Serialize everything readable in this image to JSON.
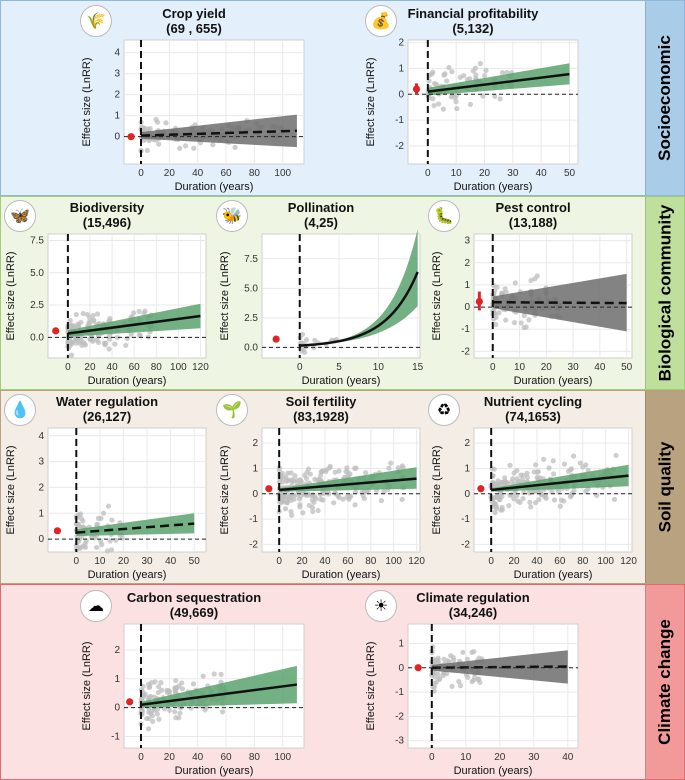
{
  "colors": {
    "socio_bg": "#e3effb",
    "socio_label": "#a9cde9",
    "bio_bg": "#eef6e3",
    "bio_label": "#bfe09c",
    "soil_bg": "#f3ede6",
    "soil_label": "#b9a27f",
    "climate_bg": "#fbe1e1",
    "climate_label": "#f29a9a",
    "green_ribbon": "#5ba26f",
    "grey_ribbon": "#6d6d6d",
    "point": "#bdbdbd",
    "effect": "#e02424"
  },
  "bands": [
    {
      "key": "socio",
      "label": "Socioeconomic"
    },
    {
      "key": "bio",
      "label": "Biological community"
    },
    {
      "key": "soil",
      "label": "Soil quality"
    },
    {
      "key": "climate",
      "label": "Climate change"
    }
  ],
  "icons": [
    {
      "name": "crop-yield-icon",
      "glyph": "🌾"
    },
    {
      "name": "financial-profitability-icon",
      "glyph": "💰"
    },
    {
      "name": "biodiversity-icon",
      "glyph": "🦋"
    },
    {
      "name": "pollination-icon",
      "glyph": "🐝"
    },
    {
      "name": "pest-control-icon",
      "glyph": "🐛"
    },
    {
      "name": "water-regulation-icon",
      "glyph": "💧"
    },
    {
      "name": "soil-fertility-icon",
      "glyph": "🌱"
    },
    {
      "name": "nutrient-cycling-icon",
      "glyph": "♻"
    },
    {
      "name": "carbon-sequestration-icon",
      "glyph": "☁"
    },
    {
      "name": "climate-regulation-icon",
      "glyph": "☀"
    }
  ],
  "chart_data": [
    {
      "id": "crop",
      "type": "scatter",
      "title": "Crop yield",
      "subtitle": "(69 , 655)",
      "xlabel": "Duration (years)",
      "ylabel": "Effect size (LnRR)",
      "xlim": [
        -12,
        115
      ],
      "ylim": [
        -1.3,
        4.6
      ],
      "xticks": [
        0,
        20,
        40,
        60,
        80,
        100
      ],
      "yticks": [
        0,
        1,
        2,
        3,
        4
      ],
      "ribbon": "grey",
      "dashed_fit": true,
      "fit": [
        [
          0,
          0.05
        ],
        [
          110,
          0.28
        ]
      ],
      "ci_low": [
        [
          0,
          -0.1
        ],
        [
          110,
          -0.5
        ]
      ],
      "ci_high": [
        [
          0,
          0.22
        ],
        [
          110,
          1.05
        ]
      ],
      "effect": {
        "x": -7,
        "y": 0.0,
        "lo": -0.15,
        "hi": 0.15
      },
      "n": 120,
      "xmax": 100,
      "spread": 0.45,
      "seed": 11
    },
    {
      "id": "fin",
      "type": "scatter",
      "title": "Financial profitability",
      "subtitle": "(5,132)",
      "xlabel": "Duration (years)",
      "ylabel": "Effect size (LnRR)",
      "xlim": [
        -7,
        53
      ],
      "ylim": [
        -2.7,
        2.1
      ],
      "xticks": [
        0,
        10,
        20,
        30,
        40,
        50
      ],
      "yticks": [
        -2,
        -1,
        0,
        1,
        2
      ],
      "ribbon": "green",
      "dashed_fit": false,
      "fit": [
        [
          0,
          0.1
        ],
        [
          50,
          0.78
        ]
      ],
      "ci_low": [
        [
          0,
          -0.05
        ],
        [
          50,
          0.38
        ]
      ],
      "ci_high": [
        [
          0,
          0.25
        ],
        [
          50,
          1.2
        ]
      ],
      "effect": {
        "x": -4,
        "y": 0.2,
        "lo": 0.0,
        "hi": 0.42
      },
      "n": 70,
      "xmax": 30,
      "spread": 0.6,
      "seed": 5
    },
    {
      "id": "bio",
      "type": "scatter",
      "title": "Biodiversity",
      "subtitle": "(15,496)",
      "xlabel": "Duration (years)",
      "ylabel": "Effect size (LnRR)",
      "xlim": [
        -18,
        125
      ],
      "ylim": [
        -1.6,
        8
      ],
      "xticks": [
        0,
        20,
        40,
        60,
        80,
        100,
        120
      ],
      "yticks": [
        0.0,
        2.5,
        5.0,
        7.5
      ],
      "ribbon": "green",
      "dashed_fit": false,
      "fit": [
        [
          0,
          0.3
        ],
        [
          120,
          1.65
        ]
      ],
      "ci_low": [
        [
          0,
          0.05
        ],
        [
          120,
          0.7
        ]
      ],
      "ci_high": [
        [
          0,
          0.55
        ],
        [
          120,
          2.6
        ]
      ],
      "effect": {
        "x": -11,
        "y": 0.5,
        "lo": 0.35,
        "hi": 0.65
      },
      "n": 140,
      "xmax": 80,
      "spread": 0.9,
      "seed": 7
    },
    {
      "id": "poll",
      "type": "scatter",
      "title": "Pollination",
      "subtitle": "(4,25)",
      "xlabel": "Duration (years)",
      "ylabel": "Effect size (LnRR)",
      "xlim": [
        -4.8,
        15.3
      ],
      "ylim": [
        -0.9,
        9.6
      ],
      "xticks": [
        0,
        5,
        10,
        15
      ],
      "yticks": [
        0.0,
        2.5,
        5.0,
        7.5
      ],
      "ribbon": "green",
      "dashed_fit": false,
      "curve": "exp",
      "fit_a": 0.15,
      "fit_b": 0.25,
      "ci_lo_b": 0.21,
      "ci_hi_b": 0.28,
      "effect": {
        "x": -3,
        "y": 0.7,
        "lo": 0.45,
        "hi": 0.95
      },
      "n": 20,
      "xmax": 5,
      "spread": 0.5,
      "seed": 3
    },
    {
      "id": "pest",
      "type": "scatter",
      "title": "Pest control",
      "subtitle": "(13,188)",
      "xlabel": "Duration (years)",
      "ylabel": "Effect size (LnRR)",
      "xlim": [
        -7,
        52
      ],
      "ylim": [
        -2.3,
        3.3
      ],
      "xticks": [
        0,
        10,
        20,
        30,
        40,
        50
      ],
      "yticks": [
        -2,
        -1,
        0,
        1,
        2,
        3
      ],
      "ribbon": "grey",
      "dashed_fit": true,
      "fit": [
        [
          0,
          0.22
        ],
        [
          50,
          0.18
        ]
      ],
      "ci_low": [
        [
          0,
          -0.05
        ],
        [
          50,
          -1.1
        ]
      ],
      "ci_high": [
        [
          0,
          0.48
        ],
        [
          50,
          1.5
        ]
      ],
      "effect": {
        "x": -5,
        "y": 0.25,
        "lo": -0.15,
        "hi": 0.7
      },
      "n": 90,
      "xmax": 25,
      "spread": 0.7,
      "seed": 13
    },
    {
      "id": "water",
      "type": "scatter",
      "title": "Water regulation",
      "subtitle": "(26,127)",
      "xlabel": "Duration (years)",
      "ylabel": "Effect size (LnRR)",
      "xlim": [
        -12,
        55
      ],
      "ylim": [
        -0.5,
        4.3
      ],
      "xticks": [
        0,
        10,
        20,
        30,
        40,
        50
      ],
      "yticks": [
        0,
        1,
        2,
        3,
        4
      ],
      "ribbon": "green",
      "dashed_fit": true,
      "fit": [
        [
          0,
          0.25
        ],
        [
          50,
          0.6
        ]
      ],
      "ci_low": [
        [
          0,
          0.12
        ],
        [
          50,
          0.22
        ]
      ],
      "ci_high": [
        [
          0,
          0.38
        ],
        [
          50,
          1.0
        ]
      ],
      "effect": {
        "x": -8,
        "y": 0.32,
        "lo": 0.25,
        "hi": 0.4
      },
      "n": 60,
      "xmax": 20,
      "spread": 0.6,
      "seed": 17
    },
    {
      "id": "fert",
      "type": "scatter",
      "title": "Soil fertility",
      "subtitle": "(83,1928)",
      "xlabel": "Duration (years)",
      "ylabel": "Effect size (LnRR)",
      "xlim": [
        -15,
        123
      ],
      "ylim": [
        -2.3,
        2.6
      ],
      "xticks": [
        0,
        20,
        40,
        60,
        80,
        100,
        120
      ],
      "yticks": [
        -2,
        -1,
        0,
        1,
        2
      ],
      "ribbon": "green",
      "dashed_fit": false,
      "fit": [
        [
          0,
          0.15
        ],
        [
          120,
          0.6
        ]
      ],
      "ci_low": [
        [
          0,
          0.08
        ],
        [
          120,
          0.2
        ]
      ],
      "ci_high": [
        [
          0,
          0.22
        ],
        [
          120,
          1.05
        ]
      ],
      "effect": {
        "x": -9,
        "y": 0.2,
        "lo": 0.15,
        "hi": 0.25
      },
      "n": 220,
      "xmax": 110,
      "spread": 0.6,
      "seed": 19
    },
    {
      "id": "nutr",
      "type": "scatter",
      "title": "Nutrient cycling",
      "subtitle": "(74,1653)",
      "xlabel": "Duration (years)",
      "ylabel": "Effect size (LnRR)",
      "xlim": [
        -15,
        123
      ],
      "ylim": [
        -2.3,
        2.6
      ],
      "xticks": [
        0,
        20,
        40,
        60,
        80,
        100,
        120
      ],
      "yticks": [
        -2,
        -1,
        0,
        1,
        2
      ],
      "ribbon": "green",
      "dashed_fit": false,
      "fit": [
        [
          0,
          0.15
        ],
        [
          120,
          0.72
        ]
      ],
      "ci_low": [
        [
          0,
          0.08
        ],
        [
          120,
          0.3
        ]
      ],
      "ci_high": [
        [
          0,
          0.22
        ],
        [
          120,
          1.15
        ]
      ],
      "effect": {
        "x": -9,
        "y": 0.2,
        "lo": 0.15,
        "hi": 0.25
      },
      "n": 200,
      "xmax": 110,
      "spread": 0.6,
      "seed": 23
    },
    {
      "id": "carbon",
      "type": "scatter",
      "title": "Carbon sequestration",
      "subtitle": "(49,669)",
      "xlabel": "Duration (years)",
      "ylabel": "Effect size (LnRR)",
      "xlim": [
        -12,
        115
      ],
      "ylim": [
        -1.4,
        2.9
      ],
      "xticks": [
        0,
        20,
        40,
        60,
        80,
        100
      ],
      "yticks": [
        -1,
        0,
        1,
        2
      ],
      "ribbon": "green",
      "dashed_fit": false,
      "fit": [
        [
          0,
          0.1
        ],
        [
          110,
          0.8
        ]
      ],
      "ci_low": [
        [
          0,
          0.0
        ],
        [
          110,
          0.15
        ]
      ],
      "ci_high": [
        [
          0,
          0.2
        ],
        [
          110,
          1.45
        ]
      ],
      "effect": {
        "x": -8,
        "y": 0.2,
        "lo": 0.1,
        "hi": 0.3
      },
      "n": 140,
      "xmax": 60,
      "spread": 0.5,
      "seed": 29
    },
    {
      "id": "climate",
      "type": "scatter",
      "title": "Climate regulation",
      "subtitle": "(34,246)",
      "xlabel": "Duration (years)",
      "ylabel": "Effect size (LnRR)",
      "xlim": [
        -7,
        43
      ],
      "ylim": [
        -3.3,
        1.8
      ],
      "xticks": [
        0,
        10,
        20,
        30,
        40
      ],
      "yticks": [
        -3,
        -2,
        -1,
        0,
        1
      ],
      "ribbon": "grey",
      "dashed_fit": true,
      "fit": [
        [
          0,
          0.0
        ],
        [
          40,
          0.05
        ]
      ],
      "ci_low": [
        [
          0,
          -0.12
        ],
        [
          40,
          -0.65
        ]
      ],
      "ci_high": [
        [
          0,
          0.12
        ],
        [
          40,
          0.72
        ]
      ],
      "effect": {
        "x": -4,
        "y": 0.0,
        "lo": -0.05,
        "hi": 0.05
      },
      "n": 80,
      "xmax": 15,
      "spread": 0.6,
      "seed": 31
    }
  ]
}
